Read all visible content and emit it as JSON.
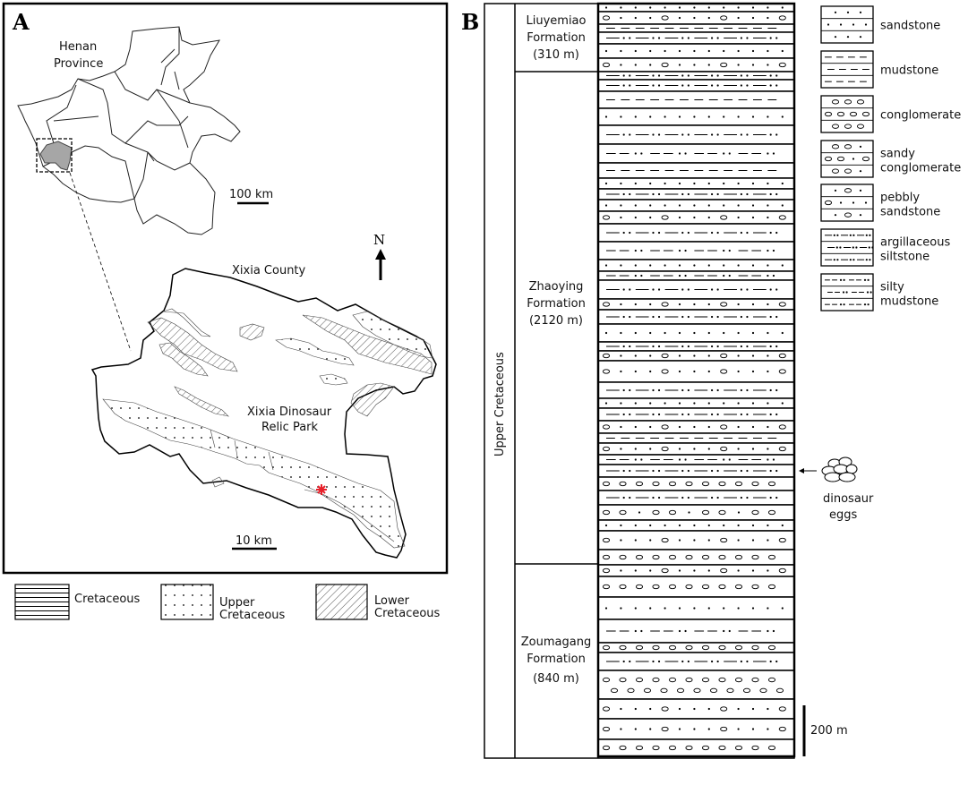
{
  "panel_a": {
    "label": "A",
    "province_label": [
      "Henan",
      "Province"
    ],
    "province_scale": "100 km",
    "county_label": "Xixia County",
    "park_label": [
      "Xixia Dinosaur",
      "Relic Park"
    ],
    "county_scale": "10 km",
    "north_label": "N",
    "highlight_color": "#a6a6a6",
    "site_marker_color": "#e8202a",
    "legend": [
      {
        "pattern": "horizontal-lines",
        "label": [
          "Cretaceous"
        ]
      },
      {
        "pattern": "dots",
        "label": [
          "Upper",
          "Cretaceous"
        ]
      },
      {
        "pattern": "diagonal-hatch",
        "label": [
          "Lower",
          "Cretaceous"
        ]
      }
    ]
  },
  "panel_b": {
    "label": "B",
    "series_label": "Upper Cretaceous",
    "formations": [
      {
        "name": "Liuyemiao",
        "word": "Formation",
        "thickness": "(310 m)"
      },
      {
        "name": "Zhaoying",
        "word": "Formation",
        "thickness": "(2120 m)"
      },
      {
        "name": "Zoumagang",
        "word": "Formation",
        "thickness": "(840 m)"
      }
    ],
    "layers": [
      "sandstone",
      "pebbly",
      "mudstone",
      "argsilt",
      "sandstone",
      "pebbly",
      "argsilt",
      "argsilt",
      "mudstone",
      "sandstone",
      "argsilt",
      "siltymud",
      "mudstone",
      "sandstone",
      "argsilt",
      "sandstone",
      "pebbly",
      "argsilt",
      "siltymud",
      "sandstone",
      "siltymud",
      "argsilt",
      "pebbly",
      "argsilt",
      "sandstone",
      "argsilt",
      "pebbly",
      "pebbly",
      "argsilt",
      "sandstone",
      "argsilt",
      "pebbly",
      "mudstone",
      "pebbly",
      "siltymud",
      "argsilt",
      "conglomerate",
      "argsilt",
      "sandyconglomerate",
      "sandstone",
      "pebbly",
      "conglomerate",
      "pebbly",
      "conglomerate",
      "sandstone",
      "siltymud",
      "conglomerate",
      "argsilt",
      "conglomerate2",
      "pebbly",
      "pebbly",
      "conglomerate"
    ],
    "eggs_label": [
      "dinosaur",
      "eggs"
    ],
    "scale_label": "200 m",
    "legend": [
      {
        "type": "sandstone",
        "label": [
          "sandstone"
        ]
      },
      {
        "type": "mudstone",
        "label": [
          "mudstone"
        ]
      },
      {
        "type": "conglomerate",
        "label": [
          "conglomerate"
        ]
      },
      {
        "type": "sandyconglomerate",
        "label": [
          "sandy",
          "conglomerate"
        ]
      },
      {
        "type": "pebbly",
        "label": [
          "pebbly",
          "sandstone"
        ]
      },
      {
        "type": "argsilt",
        "label": [
          "argillaceous",
          "siltstone"
        ]
      },
      {
        "type": "siltymud",
        "label": [
          "silty",
          "mudstone"
        ]
      }
    ]
  }
}
